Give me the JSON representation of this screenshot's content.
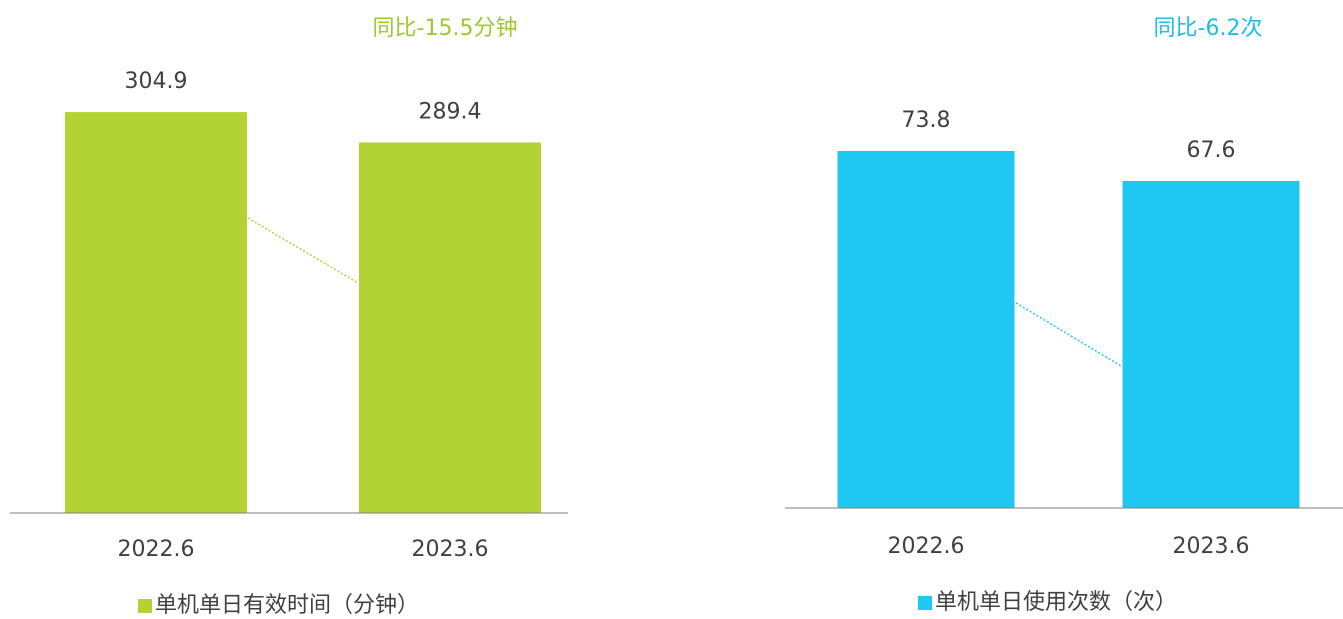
{
  "chart_data": [
    {
      "type": "bar",
      "annotation": "同比-15.5分钟",
      "annotation_color": "#9cc932",
      "categories": [
        "2022.6",
        "2023.6"
      ],
      "series": [
        {
          "name": "单机单日有效时间（分钟）",
          "color": "#b3d334",
          "values": [
            304.9,
            289.4
          ]
        }
      ],
      "ylim": [
        100,
        330
      ]
    },
    {
      "type": "bar",
      "annotation": "同比-6.2次",
      "annotation_color": "#1ebde9",
      "categories": [
        "2022.6",
        "2023.6"
      ],
      "series": [
        {
          "name": "单机单日使用次数（次）",
          "color": "#1fc8f0",
          "values": [
            73.8,
            67.6
          ]
        }
      ],
      "ylim": [
        0,
        80
      ]
    }
  ]
}
